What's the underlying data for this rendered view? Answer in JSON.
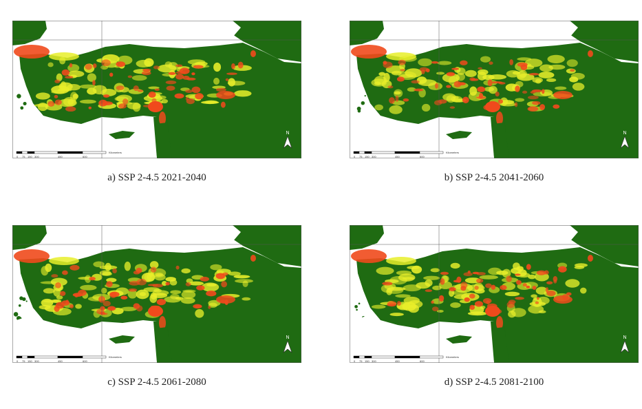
{
  "panels": [
    {
      "caption": "a) SSP 2-4.5 2021-2040",
      "scale_unit": "Kilometers",
      "north": "N",
      "scale_labels": [
        "0",
        "75",
        "150",
        "300",
        "450",
        "600"
      ]
    },
    {
      "caption": "b) SSP 2-4.5 2041-2060",
      "scale_unit": "Kilometers",
      "north": "N",
      "scale_labels": [
        "0",
        "75",
        "150",
        "300",
        "450",
        "600"
      ]
    },
    {
      "caption": "c) SSP 2-4.5 2061-2080",
      "scale_unit": "Kilometers",
      "north": "N",
      "scale_labels": [
        "0",
        "75",
        "150",
        "300",
        "450",
        "600"
      ]
    },
    {
      "caption": "d) SSP 2-4.5 2081-2100",
      "scale_unit": "Kilometers",
      "north": "N",
      "scale_labels": [
        "0",
        "75",
        "150",
        "300",
        "450",
        "600"
      ]
    }
  ],
  "colors": {
    "sea": "#ffffff",
    "low_suitability": "#1f6b12",
    "mid_suitability": "#e8ee2a",
    "high_suitability": "#f04a1c"
  }
}
